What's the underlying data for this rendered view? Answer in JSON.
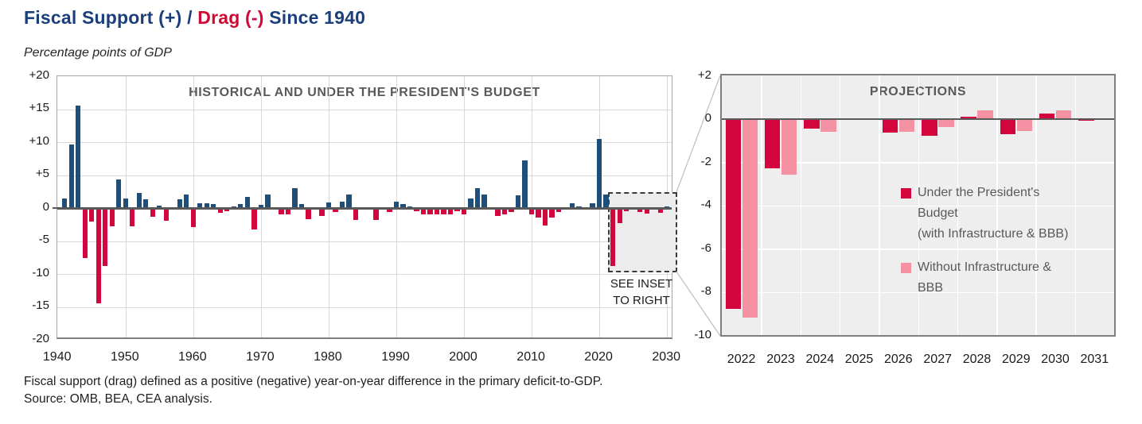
{
  "title": {
    "part1": "Fiscal Support (+) / ",
    "part2": "Drag (-)",
    "part3": " Since 1940"
  },
  "subtitle": "Percentage points of GDP",
  "colors": {
    "support_blue": "#1F4E79",
    "drag_red": "#D2063C",
    "pink": "#F492A4",
    "title_navy": "#1B3F7A",
    "title_red": "#CE0A34",
    "header_gray": "#595959",
    "grid_gray": "#D9D9D9",
    "panel_bg": "#EEEEEE",
    "panel_grid_white": "#FFFFFF",
    "axis_text": "#1A1A1A",
    "zero_line": "#595959",
    "inset_fill": "#ECECEC",
    "connector_gray": "#C2C2C2"
  },
  "left_chart": {
    "header": "HISTORICAL AND UNDER THE PRESIDENT'S BUDGET",
    "see_inset_lines": [
      "SEE INSET",
      "TO RIGHT"
    ],
    "y_tick_labels": [
      "+20",
      "+15",
      "+10",
      "+5",
      "0",
      "-5",
      "-10",
      "-15",
      "-20"
    ],
    "y_tick_values": [
      20,
      15,
      10,
      5,
      0,
      -5,
      -10,
      -15,
      -20
    ],
    "x_tick_labels": [
      "1940",
      "1950",
      "1960",
      "1970",
      "1980",
      "1990",
      "2000",
      "2010",
      "2020",
      "2030"
    ]
  },
  "right_chart": {
    "header": "PROJECTIONS",
    "y_tick_labels": [
      "+2",
      "0",
      "-2",
      "-4",
      "-6",
      "-8",
      "-10"
    ],
    "y_tick_values": [
      2,
      0,
      -2,
      -4,
      -6,
      -8,
      -10
    ],
    "legend": {
      "item1_lines": [
        "Under the President's",
        "Budget",
        "(with Infrastructure & BBB)"
      ],
      "item2_lines": [
        "Without Infrastructure &",
        "BBB"
      ]
    }
  },
  "footnote1": "Fiscal support (drag) defined as a positive (negative) year-on-year difference in the primary deficit-to-GDP.",
  "footnote2": "Source: OMB, BEA, CEA analysis.",
  "chart_data": [
    {
      "type": "bar",
      "title": "HISTORICAL AND UNDER THE PRESIDENT'S BUDGET",
      "ylabel": "Percentage points of GDP",
      "ylim": [
        -20,
        20
      ],
      "xlim": [
        1940,
        2030
      ],
      "grid": true,
      "years": [
        1940,
        1941,
        1942,
        1943,
        1944,
        1945,
        1946,
        1947,
        1948,
        1949,
        1950,
        1951,
        1952,
        1953,
        1954,
        1955,
        1956,
        1957,
        1958,
        1959,
        1960,
        1961,
        1962,
        1963,
        1964,
        1965,
        1966,
        1967,
        1968,
        1969,
        1970,
        1971,
        1972,
        1973,
        1974,
        1975,
        1976,
        1977,
        1978,
        1979,
        1980,
        1981,
        1982,
        1983,
        1984,
        1985,
        1986,
        1987,
        1988,
        1989,
        1990,
        1991,
        1992,
        1993,
        1994,
        1995,
        1996,
        1997,
        1998,
        1999,
        2000,
        2001,
        2002,
        2003,
        2004,
        2005,
        2006,
        2007,
        2008,
        2009,
        2010,
        2011,
        2012,
        2013,
        2014,
        2015,
        2016,
        2017,
        2018,
        2019,
        2020,
        2021,
        2022,
        2023,
        2024,
        2025,
        2026,
        2027,
        2028,
        2029,
        2030
      ],
      "values": [
        0,
        1.4,
        9.7,
        15.5,
        -7.6,
        -2.0,
        -14.5,
        -8.8,
        -2.8,
        4.3,
        1.4,
        -2.8,
        2.3,
        1.3,
        -1.3,
        0.4,
        -1.9,
        0,
        1.3,
        2.0,
        -2.9,
        0.7,
        0.7,
        0.6,
        -0.7,
        -0.5,
        0.3,
        0.6,
        1.7,
        -3.3,
        0.5,
        2.0,
        0,
        -1.0,
        -1.0,
        3.0,
        0.6,
        -1.7,
        0,
        -1.2,
        0.8,
        -0.6,
        1.0,
        2.0,
        -1.8,
        0,
        0,
        -1.8,
        0,
        -0.6,
        1.0,
        0.6,
        0.3,
        -0.5,
        -1.0,
        -0.9,
        -1.0,
        -0.9,
        -0.9,
        -0.5,
        -0.9,
        1.4,
        3.0,
        2.1,
        0,
        -1.2,
        -0.9,
        -0.6,
        1.9,
        7.2,
        -0.9,
        -1.4,
        -2.6,
        -1.4,
        -0.6,
        0,
        0.7,
        0.3,
        0,
        0.7,
        10.5,
        2.1,
        -8.8,
        -2.3,
        -0.45,
        0,
        -0.65,
        -0.8,
        0.1,
        -0.7,
        0.25
      ],
      "positive_color": "#1F4E79",
      "negative_color": "#D2063C"
    },
    {
      "type": "bar",
      "title": "PROJECTIONS",
      "ylim": [
        -10,
        2
      ],
      "grid": true,
      "categories": [
        "2022",
        "2023",
        "2024",
        "2025",
        "2026",
        "2027",
        "2028",
        "2029",
        "2030",
        "2031"
      ],
      "series": [
        {
          "name": "Under the President's Budget (with Infrastructure & BBB)",
          "color": "#D2063C",
          "values": [
            -8.8,
            -2.3,
            -0.45,
            0,
            -0.65,
            -0.8,
            0.1,
            -0.7,
            0.25,
            -0.1
          ]
        },
        {
          "name": "Without Infrastructure & BBB",
          "color": "#F492A4",
          "values": [
            -9.2,
            -2.6,
            -0.6,
            0,
            -0.6,
            -0.4,
            0.4,
            -0.55,
            0.4,
            -0.05
          ]
        }
      ]
    }
  ]
}
